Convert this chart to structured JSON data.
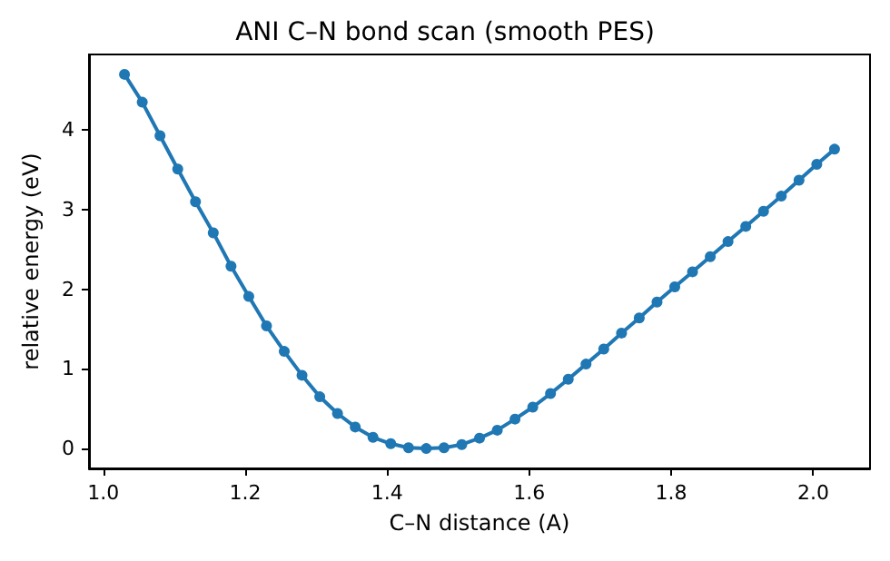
{
  "chart_data": {
    "type": "line",
    "title": "ANI C–N bond scan (smooth PES)",
    "xlabel": "C–N distance (A)",
    "ylabel": "relative energy (eV)",
    "x": [
      1.03,
      1.055,
      1.08,
      1.105,
      1.13,
      1.155,
      1.18,
      1.205,
      1.23,
      1.255,
      1.28,
      1.305,
      1.33,
      1.355,
      1.38,
      1.405,
      1.43,
      1.455,
      1.48,
      1.505,
      1.53,
      1.555,
      1.58,
      1.605,
      1.63,
      1.655,
      1.68,
      1.705,
      1.73,
      1.755,
      1.78,
      1.805,
      1.83,
      1.855,
      1.88,
      1.905,
      1.93,
      1.955,
      1.98,
      2.005,
      2.03
    ],
    "series": [
      {
        "color": "#1f77b4",
        "values": [
          4.7,
          4.35,
          3.93,
          3.51,
          3.1,
          2.71,
          2.29,
          1.91,
          1.54,
          1.22,
          0.92,
          0.65,
          0.44,
          0.27,
          0.14,
          0.06,
          0.01,
          0,
          0.01,
          0.05,
          0.13,
          0.23,
          0.37,
          0.52,
          0.69,
          0.87,
          1.06,
          1.25,
          1.45,
          1.64,
          1.84,
          2.03,
          2.22,
          2.41,
          2.6,
          2.79,
          2.98,
          3.17,
          3.37,
          3.57,
          3.76
        ]
      }
    ],
    "xlim": [
      0.98,
      2.08
    ],
    "xticks": [
      {
        "value": 1,
        "label": "1.0"
      },
      1.2,
      1.4,
      1.6,
      1.8,
      {
        "value": 2,
        "label": "2.0"
      }
    ],
    "ylim": [
      -0.25,
      4.95
    ],
    "yticks": [
      0,
      1,
      2,
      3,
      4
    ],
    "marker": "circle",
    "line_style": "solid"
  }
}
